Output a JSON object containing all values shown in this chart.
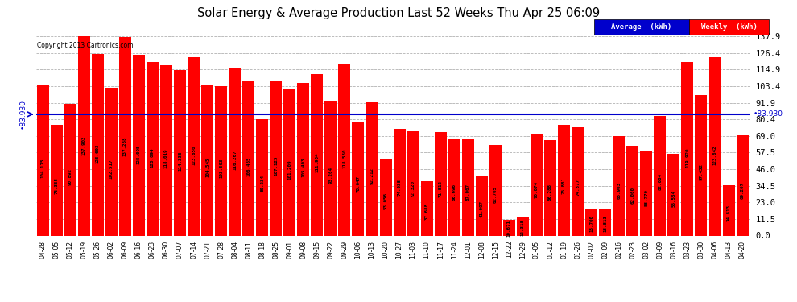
{
  "title": "Solar Energy & Average Production Last 52 Weeks Thu Apr 25 06:09",
  "copyright": "Copyright 2013 Cartronics.com",
  "average": 83.93,
  "bar_color": "#FF0000",
  "average_line_color": "#0000CC",
  "background_color": "#FFFFFF",
  "plot_bg_color": "#FFFFFF",
  "grid_color": "#AAAAAA",
  "legend_avg_bg": "#0000CC",
  "legend_weekly_bg": "#FF0000",
  "legend_avg_text": "Average  (kWh)",
  "legend_weekly_text": "Weekly  (kWh)",
  "right_ticks": [
    0.0,
    11.5,
    23.0,
    34.5,
    46.0,
    57.5,
    69.0,
    80.4,
    91.9,
    103.4,
    114.9,
    126.4,
    137.9
  ],
  "ylim": [
    0,
    137.9
  ],
  "categories": [
    "04-28",
    "05-05",
    "05-12",
    "05-19",
    "05-26",
    "06-02",
    "06-09",
    "06-16",
    "06-23",
    "06-30",
    "07-07",
    "07-14",
    "07-21",
    "07-28",
    "08-04",
    "08-11",
    "08-18",
    "08-25",
    "09-01",
    "09-08",
    "09-15",
    "09-22",
    "09-29",
    "10-06",
    "10-13",
    "10-20",
    "10-27",
    "11-03",
    "11-10",
    "11-17",
    "11-24",
    "12-01",
    "12-08",
    "12-15",
    "12-22",
    "12-29",
    "01-05",
    "01-12",
    "01-19",
    "01-26",
    "02-02",
    "02-09",
    "02-16",
    "02-23",
    "03-02",
    "03-09",
    "03-16",
    "03-23",
    "03-30",
    "04-06",
    "04-13",
    "04-20"
  ],
  "values": [
    104.175,
    76.355,
    90.892,
    137.902,
    125.603,
    102.517,
    137.268,
    125.095,
    120.094,
    118.019,
    114.336,
    123.65,
    104.545,
    103.503,
    116.267,
    106.465,
    80.234,
    107.125,
    101.209,
    105.493,
    111.984,
    93.264,
    118.53,
    78.647,
    92.212,
    53.056,
    74.038,
    72.32,
    37.688,
    71.812,
    66.696,
    67.067,
    41.097,
    62.705,
    10.671,
    12.318,
    70.074,
    66.288,
    76.881,
    74.877,
    18.7,
    18.813,
    68.903,
    62.06,
    58.77,
    82.684,
    56.534,
    119.92,
    97.432,
    123.642,
    34.813,
    69.207
  ]
}
